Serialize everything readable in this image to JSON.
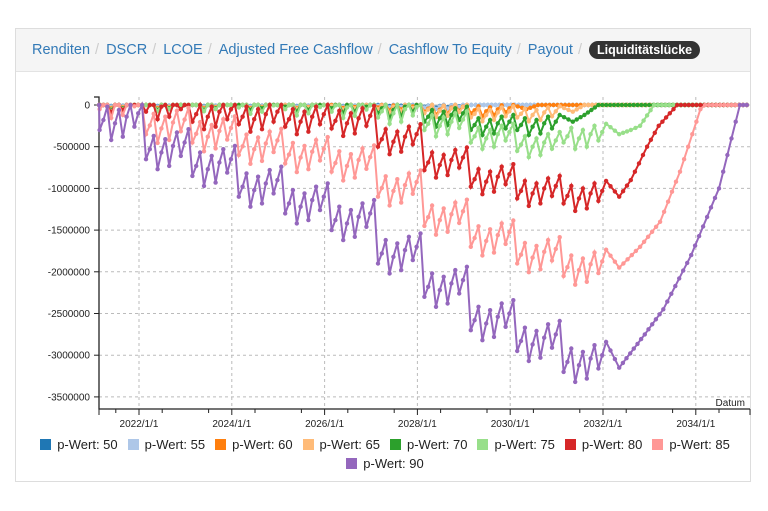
{
  "tabs": [
    {
      "label": "Renditen",
      "active": false
    },
    {
      "label": "DSCR",
      "active": false
    },
    {
      "label": "LCOE",
      "active": false
    },
    {
      "label": "Adjusted Free Cashflow",
      "active": false
    },
    {
      "label": "Cashflow To Equity",
      "active": false
    },
    {
      "label": "Payout",
      "active": false
    },
    {
      "label": "Liquiditätslücke",
      "active": true
    }
  ],
  "chart_data": {
    "type": "line",
    "title": "",
    "xlabel": "Datum",
    "ylabel": "",
    "xlim": [
      2021.14,
      2035.1
    ],
    "ylim": [
      -3650000,
      100000
    ],
    "x_ticks": [
      "2022/1/1",
      "2024/1/1",
      "2026/1/1",
      "2028/1/1",
      "2030/1/1",
      "2032/1/1",
      "2034/1/1"
    ],
    "x_tick_years": [
      2022,
      2024,
      2026,
      2028,
      2030,
      2032,
      2034
    ],
    "y_ticks": [
      0,
      -500000,
      -1000000,
      -1500000,
      -2000000,
      -2500000,
      -3000000,
      -3500000
    ],
    "y_tick_labels": [
      "0",
      "-500000",
      "-1000000",
      "-1500000",
      "-2000000",
      "-2500000",
      "-3000000",
      "-3500000"
    ],
    "grid": true,
    "legend_position": "bottom",
    "segment_start_year": 2021.15,
    "monthly_pattern": [
      0,
      0.3,
      0.7,
      -0.3,
      0.2,
      0.6,
      -0.2,
      0.4,
      0.8,
      0.1,
      0.5,
      0.9
    ],
    "series": [
      {
        "name": "p-Wert: 50",
        "color": "#1f77b4",
        "amp": 40,
        "yearly_levels_k": [
          0,
          0,
          0,
          0,
          0,
          0,
          0,
          -20
        ],
        "tail_k": [
          [
            2029.35,
            0
          ],
          [
            2035.1,
            0
          ]
        ]
      },
      {
        "name": "p-Wert: 55",
        "color": "#aec7e8",
        "amp": 60,
        "yearly_levels_k": [
          0,
          0,
          0,
          0,
          0,
          0,
          -10,
          -30
        ],
        "tail_k": [
          [
            2029.35,
            0
          ],
          [
            2035.1,
            0
          ]
        ]
      },
      {
        "name": "p-Wert: 60",
        "color": "#ff7f0e",
        "amp": 120,
        "yearly_levels_k": [
          0,
          0,
          0,
          0,
          0,
          0,
          -30,
          -80,
          -100
        ],
        "tail_k": [
          [
            2030.35,
            -50
          ],
          [
            2030.6,
            0
          ],
          [
            2035.1,
            0
          ]
        ]
      },
      {
        "name": "p-Wert: 65",
        "color": "#ffbb78",
        "amp": 150,
        "yearly_levels_k": [
          0,
          0,
          0,
          0,
          0,
          -10,
          -50,
          -100,
          -150,
          -150
        ],
        "tail_k": [
          [
            2031.35,
            -80
          ],
          [
            2031.6,
            0
          ],
          [
            2035.1,
            0
          ]
        ]
      },
      {
        "name": "p-Wert: 70",
        "color": "#2ca02c",
        "amp": 200,
        "yearly_levels_k": [
          0,
          0,
          0,
          0,
          -20,
          -40,
          -100,
          -200,
          -300,
          -300
        ],
        "tail_k": [
          [
            2031.35,
            -200
          ],
          [
            2031.6,
            -120
          ],
          [
            2031.9,
            0
          ],
          [
            2035.1,
            0
          ]
        ]
      },
      {
        "name": "p-Wert: 75",
        "color": "#98df8a",
        "amp": 250,
        "yearly_levels_k": [
          0,
          0,
          0,
          -30,
          -50,
          -80,
          -150,
          -300,
          -450,
          -550,
          -450
        ],
        "tail_k": [
          [
            2032.35,
            -350
          ],
          [
            2032.6,
            -300
          ],
          [
            2032.8,
            -250
          ],
          [
            2033.1,
            0
          ],
          [
            2035.1,
            0
          ]
        ]
      },
      {
        "name": "p-Wert: 80",
        "color": "#d62728",
        "amp": 300,
        "yearly_levels_k": [
          0,
          -80,
          -200,
          -230,
          -260,
          -280,
          -500,
          -780,
          -980,
          -1120,
          -1180
        ],
        "tail_k": [
          [
            2032.35,
            -1100
          ],
          [
            2032.6,
            -900
          ],
          [
            2032.95,
            -500
          ],
          [
            2033.2,
            -250
          ],
          [
            2033.6,
            0
          ],
          [
            2035.1,
            0
          ]
        ]
      },
      {
        "name": "p-Wert: 85",
        "color": "#ff9896",
        "amp": 350,
        "yearly_levels_k": [
          -50,
          -350,
          -450,
          -600,
          -700,
          -800,
          -1100,
          -1450,
          -1700,
          -1900,
          -2050
        ],
        "tail_k": [
          [
            2032.35,
            -1950
          ],
          [
            2032.8,
            -1700
          ],
          [
            2033.23,
            -1400
          ],
          [
            2033.66,
            -800
          ],
          [
            2034.1,
            -50
          ],
          [
            2034.2,
            0
          ],
          [
            2035.1,
            0
          ]
        ]
      },
      {
        "name": "p-Wert: 90",
        "color": "#9467bd",
        "amp": 400,
        "yearly_levels_k": [
          -300,
          -650,
          -850,
          -1100,
          -1300,
          -1500,
          -1900,
          -2300,
          -2700,
          -2950,
          -3200
        ],
        "tail_k": [
          [
            2032.35,
            -3150
          ],
          [
            2032.9,
            -2750
          ],
          [
            2033.3,
            -2450
          ],
          [
            2033.9,
            -1800
          ],
          [
            2034.5,
            -1000
          ],
          [
            2034.95,
            0
          ],
          [
            2035.1,
            0
          ]
        ]
      }
    ]
  }
}
